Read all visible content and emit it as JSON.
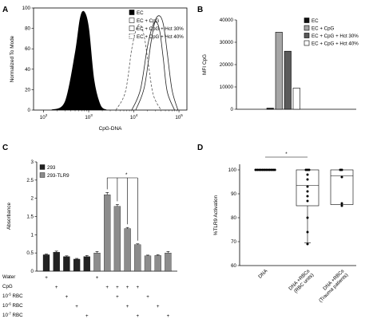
{
  "chart_data": [
    {
      "panel": "A",
      "type": "area",
      "xlabel": "CpG-DNA",
      "ylabel": "Normalized To Mode",
      "x_ticks": [
        "10^2",
        "10^3",
        "10^4",
        "10^5"
      ],
      "xscale": "log",
      "xlim": [
        60,
        150000
      ],
      "y_ticks": [
        "0",
        "20",
        "40",
        "60",
        "80",
        "100"
      ],
      "ylim": [
        0,
        100
      ],
      "legend_position": "top-right",
      "series": [
        {
          "name": "EC",
          "style": "filled-black",
          "x": [
            150,
            300,
            500,
            650,
            800,
            1000,
            1300,
            1800,
            2500
          ],
          "y": [
            0,
            8,
            55,
            90,
            96,
            80,
            30,
            5,
            0
          ]
        },
        {
          "name": "EC + CpG",
          "style": "open-solid",
          "x": [
            9000,
            14000,
            20000,
            26000,
            32000,
            38000,
            45000,
            55000,
            80000
          ],
          "y": [
            0,
            20,
            62,
            82,
            86,
            76,
            50,
            18,
            0
          ]
        },
        {
          "name": "EC + CpG + Hct 30%",
          "style": "open-solid",
          "x": [
            11000,
            17000,
            24000,
            30000,
            38000,
            46000,
            55000,
            70000,
            95000
          ],
          "y": [
            0,
            22,
            66,
            88,
            92,
            82,
            56,
            20,
            0
          ]
        },
        {
          "name": "EC + CpG + Hct 40%",
          "style": "open-dashed",
          "x": [
            4000,
            6500,
            9000,
            11500,
            14000,
            17000,
            21000,
            27000,
            40000
          ],
          "y": [
            0,
            18,
            60,
            80,
            83,
            72,
            45,
            15,
            0
          ]
        }
      ]
    },
    {
      "panel": "B",
      "type": "bar",
      "ylabel": "MFI CpG",
      "y_ticks": [
        "0",
        "10000",
        "20000",
        "30000",
        "40000"
      ],
      "ylim": [
        0,
        40000
      ],
      "legend_position": "top-right",
      "categories": [
        "EC",
        "EC + CpG",
        "EC + CpG + Hct 30%",
        "EC + CpG + Hct 40%"
      ],
      "values": [
        500,
        34500,
        26000,
        9500
      ],
      "colors": [
        "#111111",
        "#a6a6a6",
        "#5a5a5a",
        "#ffffff"
      ]
    },
    {
      "panel": "C",
      "type": "bar",
      "ylabel": "Absorbance",
      "y_ticks": [
        "0",
        "0.5",
        "1",
        "1.5",
        "2",
        "2.5",
        "3"
      ],
      "ylim": [
        0,
        3
      ],
      "legend_position": "top-left",
      "series": [
        {
          "name": "293",
          "color": "#222222",
          "values": [
            0.45,
            0.52,
            0.4,
            0.33,
            0.4
          ]
        },
        {
          "name": "293-TLR9",
          "color": "#8c8c8c",
          "values": [
            0.5,
            2.1,
            1.78,
            1.17,
            0.73,
            0.42,
            0.43,
            0.5
          ]
        }
      ],
      "errors_293": [
        0.02,
        0.03,
        0.02,
        0.02,
        0.03
      ],
      "errors_tlr9": [
        0.04,
        0.06,
        0.05,
        0.03,
        0.02,
        0.02,
        0.02,
        0.04
      ],
      "significance": "*",
      "condition_labels": [
        "Water",
        "CpG",
        "10^-5 RBC",
        "10^-6 RBC",
        "10^-7 RBC"
      ],
      "plus_marker": "+",
      "condition_matrix": [
        [
          1,
          0,
          0,
          0,
          0,
          1,
          0,
          0,
          0,
          0,
          0,
          0,
          0
        ],
        [
          0,
          1,
          0,
          0,
          0,
          0,
          1,
          1,
          1,
          1,
          0,
          0,
          0
        ],
        [
          0,
          0,
          1,
          0,
          0,
          0,
          0,
          1,
          0,
          0,
          1,
          0,
          0
        ],
        [
          0,
          0,
          0,
          1,
          0,
          0,
          0,
          0,
          1,
          0,
          0,
          1,
          0
        ],
        [
          0,
          0,
          0,
          0,
          1,
          0,
          0,
          0,
          0,
          1,
          0,
          0,
          1
        ]
      ]
    },
    {
      "panel": "D",
      "type": "scatter",
      "ylabel": "%TLR9 Activation",
      "y_ticks": [
        "60",
        "70",
        "80",
        "90",
        "100"
      ],
      "ylim": [
        60,
        100
      ],
      "categories": [
        "DNA",
        "DNA +RBCs (RBC units)",
        "DNA +RBCs (Trauma patients)"
      ],
      "points": [
        [
          100,
          100,
          100,
          100,
          100,
          100,
          100,
          100,
          100,
          100,
          100,
          100
        ],
        [
          100,
          100,
          100,
          98,
          96,
          93,
          91,
          89,
          87,
          80,
          74,
          69
        ],
        [
          100,
          100,
          97,
          86,
          85
        ]
      ],
      "box": [
        {
          "min": 100,
          "q1": 100,
          "median": 100,
          "q3": 100,
          "max": 100
        },
        {
          "min": 69.5,
          "q1": 85,
          "median": 93.5,
          "q3": 100,
          "max": 100
        },
        {
          "min": 85.5,
          "q1": 85.5,
          "median": 97.5,
          "q3": 100,
          "max": 100
        }
      ],
      "significance": "*"
    }
  ]
}
